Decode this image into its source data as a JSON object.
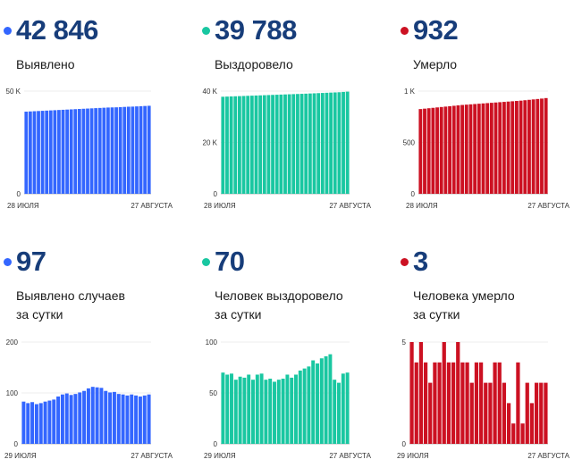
{
  "panels": [
    {
      "id": "detected-total",
      "number": "42 846",
      "label": "Выявлено",
      "color": "#3366ff",
      "chart_data": {
        "type": "bar",
        "x_start_label": "28 ИЮЛЯ",
        "x_end_label": "27 АВГУСТА",
        "y_tick_labels": [
          "0",
          "50 K"
        ],
        "y_ticks": [
          0,
          50000
        ],
        "ylim": [
          0,
          50000
        ],
        "values": [
          40000,
          40100,
          40200,
          40300,
          40400,
          40500,
          40600,
          40700,
          40800,
          40900,
          41000,
          41100,
          41200,
          41300,
          41400,
          41500,
          41600,
          41700,
          41800,
          41900,
          42000,
          42050,
          42100,
          42200,
          42300,
          42400,
          42450,
          42550,
          42650,
          42750,
          42846
        ]
      }
    },
    {
      "id": "recovered-total",
      "number": "39 788",
      "label": "Выздоровело",
      "color": "#19c7a1",
      "chart_data": {
        "type": "bar",
        "x_start_label": "28 ИЮЛЯ",
        "x_end_label": "27 АВГУСТА",
        "y_tick_labels": [
          "0",
          "20 K",
          "40 K"
        ],
        "y_ticks": [
          0,
          20000,
          40000
        ],
        "ylim": [
          0,
          40000
        ],
        "values": [
          37800,
          37860,
          37920,
          37980,
          38040,
          38100,
          38160,
          38220,
          38280,
          38340,
          38400,
          38460,
          38520,
          38580,
          38640,
          38700,
          38760,
          38820,
          38880,
          38940,
          39000,
          39070,
          39140,
          39210,
          39280,
          39350,
          39420,
          39490,
          39560,
          39680,
          39788
        ]
      }
    },
    {
      "id": "died-total",
      "number": "932",
      "label": "Умерло",
      "color": "#cc1122",
      "chart_data": {
        "type": "bar",
        "x_start_label": "28 ИЮЛЯ",
        "x_end_label": "27 АВГУСТА",
        "y_tick_labels": [
          "0",
          "500",
          "1 K"
        ],
        "y_ticks": [
          0,
          500,
          1000
        ],
        "ylim": [
          0,
          1000
        ],
        "values": [
          825,
          829,
          833,
          837,
          841,
          845,
          849,
          853,
          857,
          861,
          865,
          868,
          871,
          874,
          877,
          880,
          883,
          886,
          889,
          892,
          895,
          898,
          901,
          904,
          907,
          911,
          915,
          919,
          923,
          927,
          932
        ]
      }
    },
    {
      "id": "detected-daily",
      "number": "97",
      "label": "Выявлено случаев\nза сутки",
      "color": "#3366ff",
      "chart_data": {
        "type": "bar",
        "x_start_label": "29 ИЮЛЯ",
        "x_end_label": "27 АВГУСТА",
        "y_tick_labels": [
          "0",
          "100",
          "200"
        ],
        "y_ticks": [
          0,
          100,
          200
        ],
        "ylim": [
          0,
          200
        ],
        "values": [
          83,
          80,
          82,
          78,
          80,
          83,
          85,
          87,
          93,
          97,
          99,
          96,
          98,
          101,
          104,
          109,
          112,
          111,
          110,
          104,
          101,
          102,
          98,
          97,
          95,
          97,
          95,
          93,
          95,
          97
        ]
      }
    },
    {
      "id": "recovered-daily",
      "number": "70",
      "label": "Человек выздоровело\nза сутки",
      "color": "#19c7a1",
      "chart_data": {
        "type": "bar",
        "x_start_label": "29 ИЮЛЯ",
        "x_end_label": "27 АВГУСТА",
        "y_tick_labels": [
          "0",
          "50",
          "100"
        ],
        "y_ticks": [
          0,
          50,
          100
        ],
        "ylim": [
          0,
          100
        ],
        "values": [
          70,
          68,
          69,
          63,
          66,
          65,
          68,
          63,
          68,
          69,
          63,
          64,
          61,
          63,
          64,
          68,
          65,
          68,
          72,
          74,
          76,
          82,
          79,
          84,
          86,
          88,
          63,
          60,
          69,
          70
        ]
      }
    },
    {
      "id": "died-daily",
      "number": "3",
      "label": "Человека умерло\nза сутки",
      "color": "#cc1122",
      "chart_data": {
        "type": "bar",
        "x_start_label": "29 ИЮЛЯ",
        "x_end_label": "27 АВГУСТА",
        "y_tick_labels": [
          "0",
          "5"
        ],
        "y_ticks": [
          0,
          5
        ],
        "ylim": [
          0,
          5
        ],
        "values": [
          5,
          4,
          5,
          4,
          3,
          4,
          4,
          5,
          4,
          4,
          5,
          4,
          4,
          3,
          4,
          4,
          3,
          3,
          4,
          4,
          3,
          2,
          1,
          4,
          1,
          3,
          2,
          3,
          3,
          3
        ]
      }
    }
  ]
}
